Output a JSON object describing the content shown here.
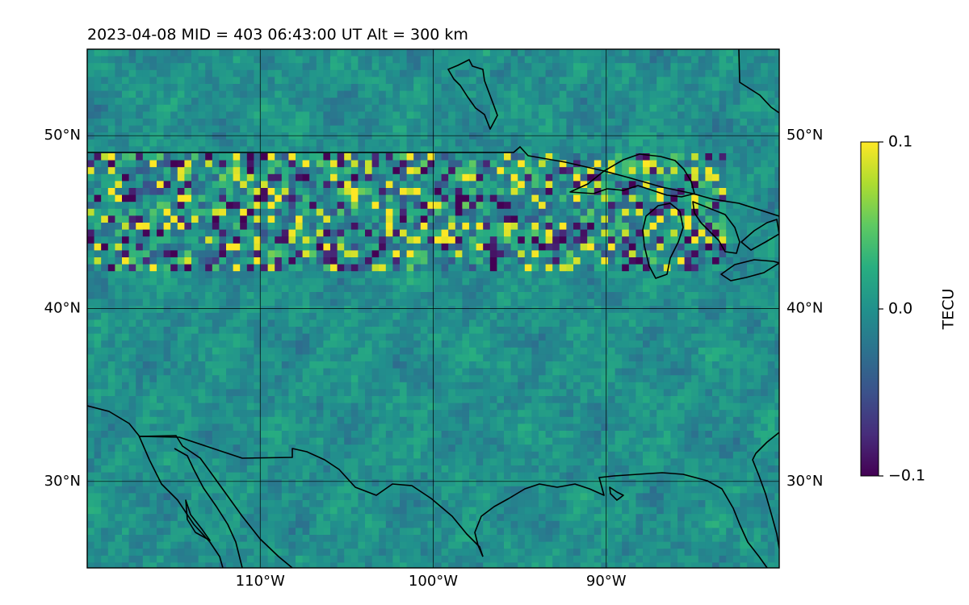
{
  "title": "2023-04-08  MID = 403    06:43:00  UT  Alt = 300 km",
  "chart_data": {
    "type": "heatmap",
    "title": "2023-04-08  MID = 403    06:43:00  UT  Alt = 300 km",
    "map_extent_deg": {
      "lon": [
        -120,
        -80
      ],
      "lat": [
        25,
        55
      ]
    },
    "lat_ticks": [
      {
        "value": 50,
        "label": "50°N"
      },
      {
        "value": 40,
        "label": "40°N"
      },
      {
        "value": 30,
        "label": "30°N"
      }
    ],
    "lon_ticks": [
      {
        "value": -110,
        "label": "110°W"
      },
      {
        "value": -100,
        "label": "100°W"
      },
      {
        "value": -90,
        "label": "90°W"
      }
    ],
    "grid": true,
    "colormap": "viridis",
    "colorbar": {
      "label": "TECU",
      "vmin": -0.1,
      "vmax": 0.1,
      "ticks": [
        {
          "value": 0.1,
          "label": "0.1"
        },
        {
          "value": 0.0,
          "label": "0.0"
        },
        {
          "value": -0.1,
          "label": "−0.1"
        }
      ]
    },
    "field": {
      "background_mean": 0.0,
      "disturbed_band_lat": [
        42,
        49
      ],
      "disturbed_band_lon": [
        -120,
        -83
      ],
      "notes_visible": "high-variance speckle band near 42°N–49°N"
    }
  },
  "colors": {
    "frame": "#000000",
    "coast": "#000000",
    "grid": "#000000"
  }
}
